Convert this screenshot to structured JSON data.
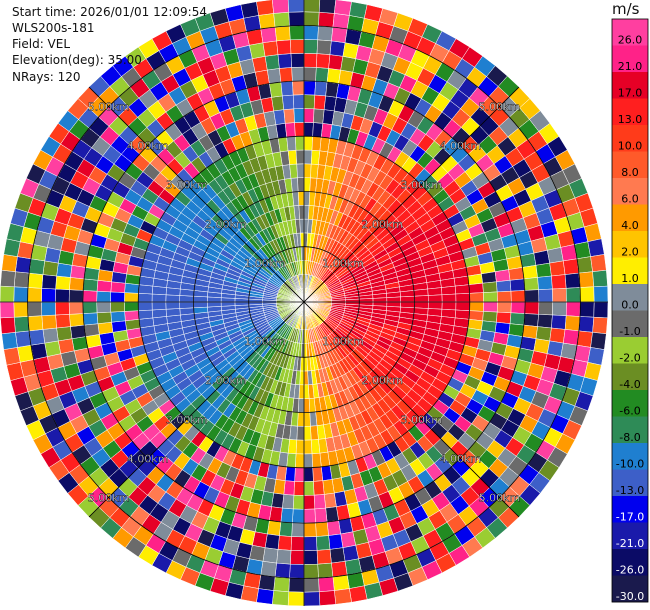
{
  "header": {
    "start_time": "Start time: 2026/01/01 12:09:54",
    "instrument": "WLS200s-181",
    "field": "Field: VEL",
    "elevation": "Elevation(deg): 35.00",
    "nrays": "NRays: 120"
  },
  "colorbar": {
    "unit": "m/s",
    "ticks": [
      "26.0",
      "21.0",
      "17.0",
      "13.0",
      "10.0",
      "8.0",
      "6.0",
      "4.0",
      "2.0",
      "1.0",
      "0.0",
      "-1.0",
      "-2.0",
      "-4.0",
      "-6.0",
      "-8.0",
      "-10.0",
      "-13.0",
      "-17.0",
      "-21.0",
      "-26.0",
      "-30.0"
    ],
    "colors": [
      "#ff3fa0",
      "#ff2288",
      "#e60026",
      "#ff1f1f",
      "#ff3b1a",
      "#ff5a2a",
      "#ff7a50",
      "#ff9a00",
      "#ffc400",
      "#ffee00",
      "#7f8c9a",
      "#6b6b6b",
      "#9acd32",
      "#6b8e23",
      "#228b22",
      "#2e8b57",
      "#1f7fd0",
      "#3d5fc8",
      "#0000ee",
      "#1a1aaa",
      "#0b0b66",
      "#1a1a4d"
    ]
  },
  "chart_data": {
    "type": "ppi",
    "field": "VEL",
    "nrays": 120,
    "range_rings_km": [
      1,
      2,
      3,
      4,
      5
    ],
    "ring_labels": [
      "1.00km",
      "2.00km",
      "3.00km",
      "4.00km",
      "5.00km"
    ],
    "max_range_km": 5.5,
    "valid_range_km": 3.0,
    "pattern": "near-range velocity dipole: positive (yellow to red) to the east, negative (green to blue) to the west; noisy multicolor clutter beyond about 3 km",
    "value_range": [
      -30.0,
      26.0
    ]
  }
}
